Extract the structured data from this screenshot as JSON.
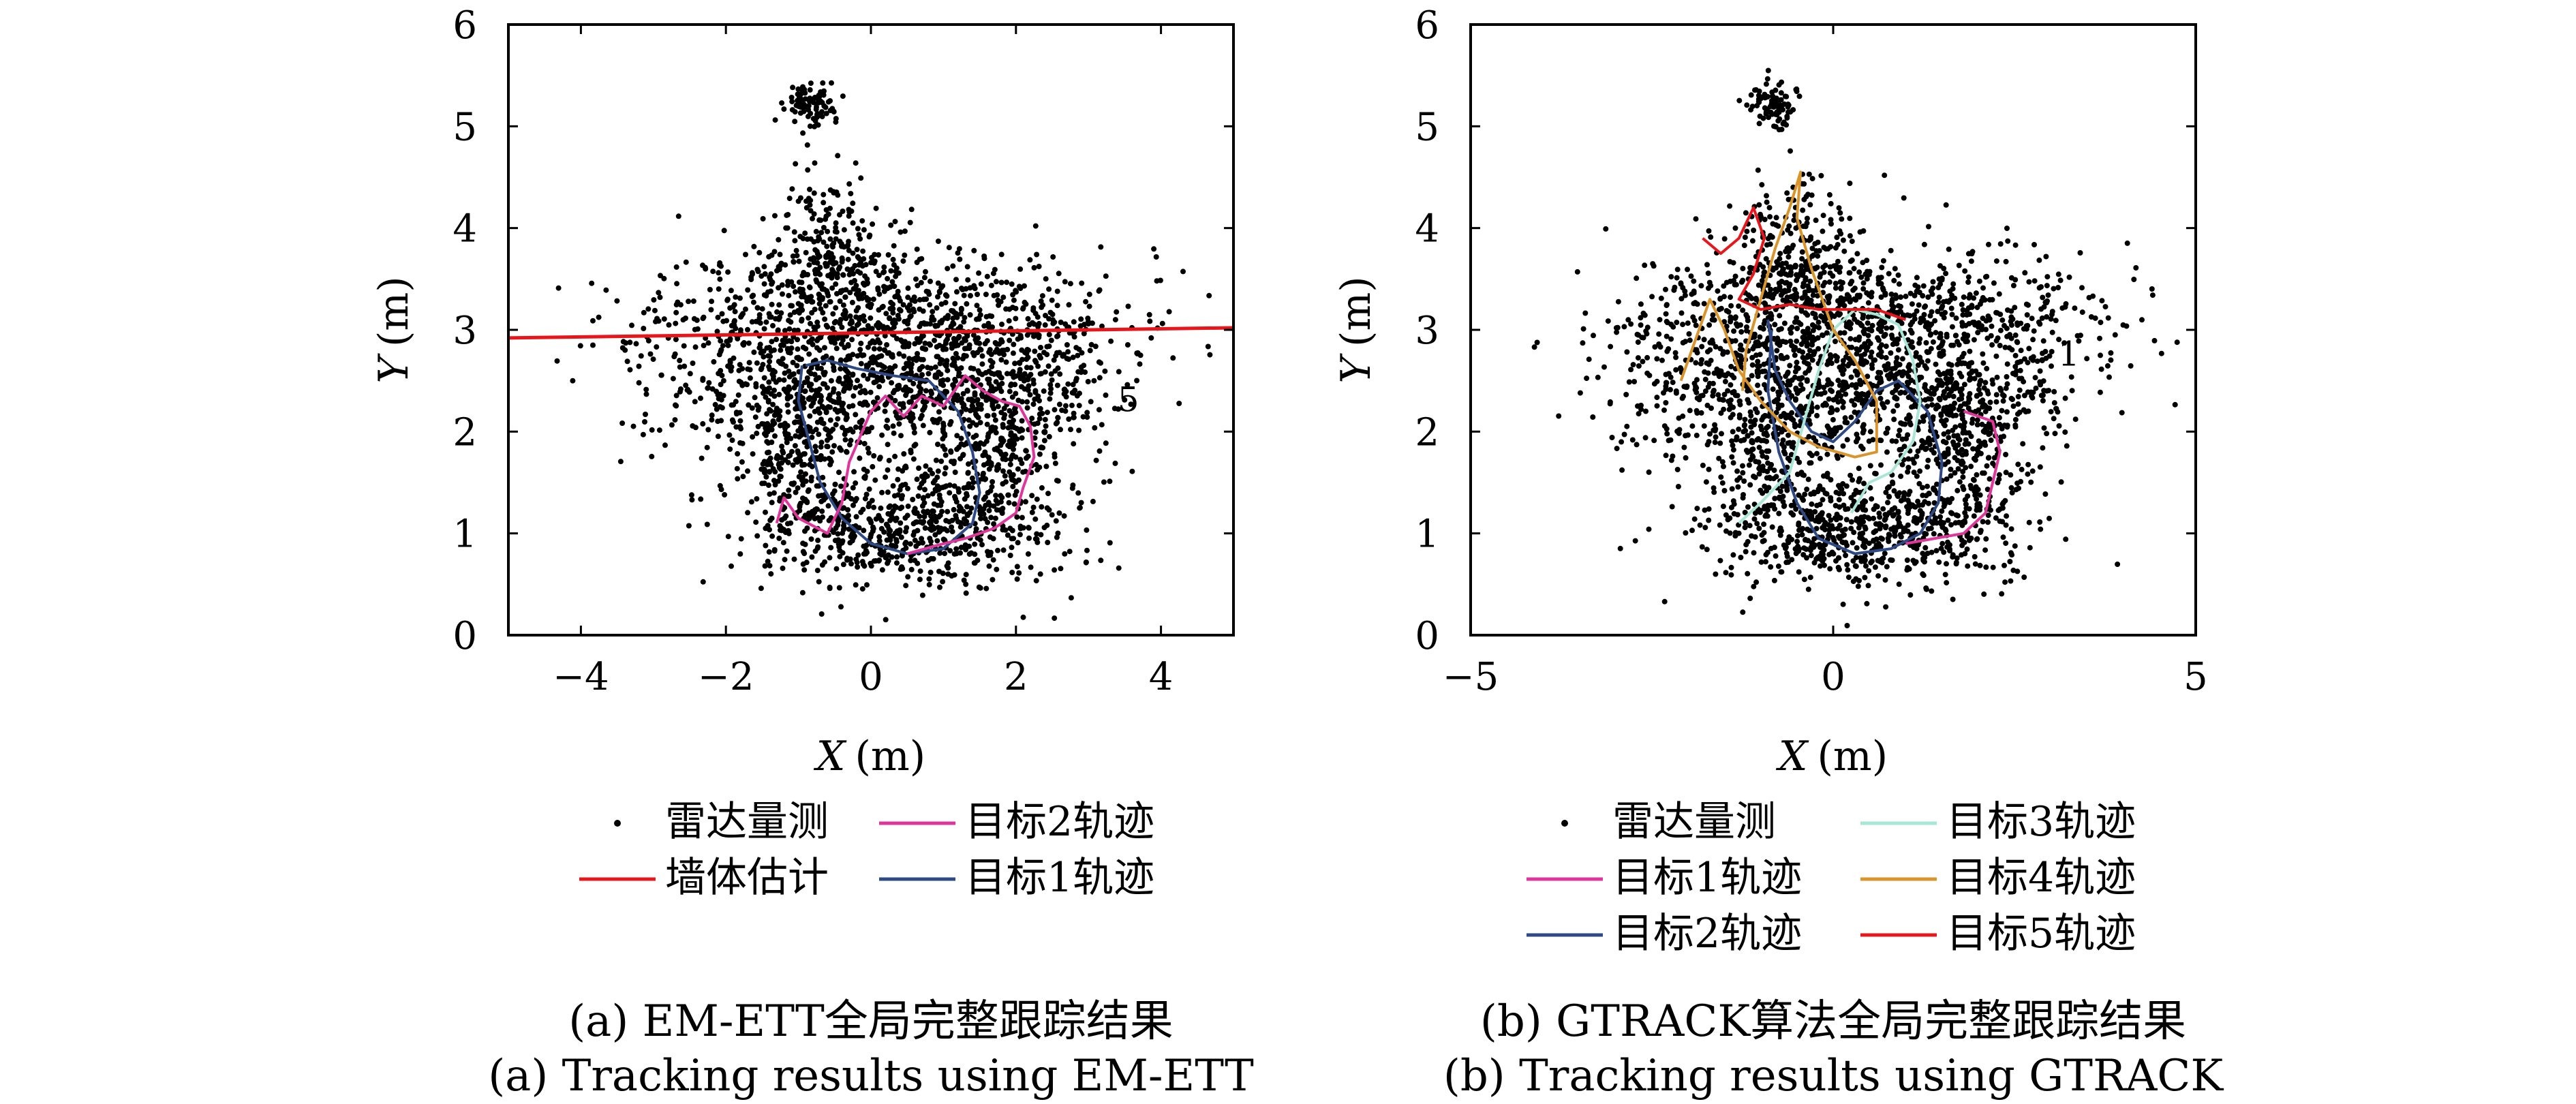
{
  "chart_data": [
    {
      "type": "scatter",
      "panel": "a",
      "xlabel_var": "X",
      "xlabel_unit": "(m)",
      "ylabel_var": "Y",
      "ylabel_unit": "(m)",
      "xlim": [
        -5,
        5
      ],
      "ylim": [
        0,
        6
      ],
      "xticks": [
        -4,
        -2,
        0,
        2,
        4
      ],
      "xtick_labels": [
        "−4",
        "−2",
        "0",
        "2",
        "4"
      ],
      "yticks": [
        0,
        1,
        2,
        3,
        4,
        5,
        6
      ],
      "ytick_labels": [
        "0",
        "1",
        "2",
        "3",
        "4",
        "5",
        "6"
      ],
      "legend": [
        {
          "label": "雷达量测",
          "kind": "marker",
          "color": "#000000"
        },
        {
          "label": "目标2轨迹",
          "kind": "line",
          "color": "#e0359b"
        },
        {
          "label": "墙体估计",
          "kind": "line",
          "color": "#e8161b"
        },
        {
          "label": "目标1轨迹",
          "kind": "line",
          "color": "#2d4a86"
        }
      ],
      "annotations": [
        {
          "text": "5",
          "x": 3.4,
          "y": 2.2
        }
      ],
      "series": [
        {
          "name": "墙体估计",
          "kind": "line",
          "color": "#e8161b",
          "width": 5,
          "points": [
            [
              -5,
              2.92
            ],
            [
              5,
              3.02
            ]
          ]
        },
        {
          "name": "目标1轨迹",
          "kind": "line",
          "color": "#2d4a86",
          "width": 4,
          "points": [
            [
              -0.9,
              2.65
            ],
            [
              -0.6,
              2.7
            ],
            [
              -0.2,
              2.62
            ],
            [
              0.3,
              2.55
            ],
            [
              0.8,
              2.5
            ],
            [
              1.2,
              2.2
            ],
            [
              1.4,
              1.8
            ],
            [
              1.5,
              1.4
            ],
            [
              1.4,
              1.1
            ],
            [
              1.0,
              0.85
            ],
            [
              0.5,
              0.8
            ],
            [
              0.0,
              0.9
            ],
            [
              -0.4,
              1.15
            ],
            [
              -0.7,
              1.5
            ],
            [
              -0.85,
              1.9
            ],
            [
              -1.0,
              2.3
            ],
            [
              -0.95,
              2.65
            ]
          ]
        },
        {
          "name": "目标2轨迹",
          "kind": "line",
          "color": "#e0359b",
          "width": 4,
          "points": [
            [
              -1.3,
              1.1
            ],
            [
              -1.2,
              1.35
            ],
            [
              -1.0,
              1.15
            ],
            [
              -0.6,
              1.0
            ],
            [
              -0.4,
              1.3
            ],
            [
              -0.3,
              1.7
            ],
            [
              0.0,
              2.2
            ],
            [
              0.2,
              2.35
            ],
            [
              0.45,
              2.15
            ],
            [
              0.7,
              2.35
            ],
            [
              1.0,
              2.25
            ],
            [
              1.3,
              2.55
            ],
            [
              1.55,
              2.4
            ],
            [
              1.8,
              2.3
            ],
            [
              2.05,
              2.25
            ],
            [
              2.2,
              2.05
            ],
            [
              2.25,
              1.75
            ],
            [
              2.1,
              1.45
            ],
            [
              2.0,
              1.2
            ],
            [
              1.7,
              1.05
            ],
            [
              1.3,
              0.95
            ],
            [
              0.9,
              0.88
            ],
            [
              0.5,
              0.8
            ]
          ]
        }
      ]
    },
    {
      "type": "scatter",
      "panel": "b",
      "xlabel_var": "X",
      "xlabel_unit": "(m)",
      "ylabel_var": "Y",
      "ylabel_unit": "(m)",
      "xlim": [
        -5,
        5
      ],
      "ylim": [
        0,
        6
      ],
      "xticks": [
        -5,
        0,
        5
      ],
      "xtick_labels": [
        "−5",
        "0",
        "5"
      ],
      "yticks": [
        0,
        1,
        2,
        3,
        4,
        5,
        6
      ],
      "ytick_labels": [
        "0",
        "1",
        "2",
        "3",
        "4",
        "5",
        "6"
      ],
      "legend": [
        {
          "label": "雷达量测",
          "kind": "marker",
          "color": "#000000"
        },
        {
          "label": "目标3轨迹",
          "kind": "line",
          "color": "#a8e6d6"
        },
        {
          "label": "目标1轨迹",
          "kind": "line",
          "color": "#e0359b"
        },
        {
          "label": "目标4轨迹",
          "kind": "line",
          "color": "#d9952b"
        },
        {
          "label": "目标2轨迹",
          "kind": "line",
          "color": "#2d4a86"
        },
        {
          "label": "目标5轨迹",
          "kind": "line",
          "color": "#e8161b"
        }
      ],
      "annotations": [
        {
          "text": "1",
          "x": 3.1,
          "y": 2.65
        }
      ],
      "series": [
        {
          "name": "目标2轨迹",
          "kind": "line",
          "color": "#2d4a86",
          "width": 4,
          "points": [
            [
              -0.9,
              3.1
            ],
            [
              -0.8,
              2.6
            ],
            [
              -0.6,
              2.3
            ],
            [
              -0.3,
              2.0
            ],
            [
              0.0,
              1.9
            ],
            [
              0.3,
              2.1
            ],
            [
              0.6,
              2.4
            ],
            [
              0.9,
              2.5
            ],
            [
              1.3,
              2.2
            ],
            [
              1.5,
              1.7
            ],
            [
              1.45,
              1.3
            ],
            [
              1.2,
              1.0
            ],
            [
              0.8,
              0.85
            ],
            [
              0.3,
              0.8
            ],
            [
              -0.2,
              0.95
            ],
            [
              -0.5,
              1.3
            ],
            [
              -0.75,
              1.8
            ],
            [
              -0.9,
              2.4
            ],
            [
              -0.85,
              3.0
            ]
          ]
        },
        {
          "name": "目标3轨迹",
          "kind": "line",
          "color": "#a8e6d6",
          "width": 4,
          "points": [
            [
              -1.3,
              1.1
            ],
            [
              -1.0,
              1.3
            ],
            [
              -0.6,
              1.6
            ],
            [
              -0.4,
              2.1
            ],
            [
              -0.2,
              2.6
            ],
            [
              0.0,
              3.0
            ],
            [
              0.3,
              3.2
            ],
            [
              0.6,
              3.15
            ],
            [
              0.9,
              3.05
            ],
            [
              1.1,
              2.7
            ],
            [
              1.2,
              2.3
            ],
            [
              1.1,
              1.9
            ],
            [
              0.8,
              1.6
            ],
            [
              0.5,
              1.5
            ],
            [
              0.25,
              1.2
            ]
          ]
        },
        {
          "name": "目标4轨迹",
          "kind": "line",
          "color": "#d9952b",
          "width": 4,
          "points": [
            [
              -2.1,
              2.5
            ],
            [
              -1.9,
              2.9
            ],
            [
              -1.7,
              3.3
            ],
            [
              -1.5,
              3.0
            ],
            [
              -1.3,
              2.6
            ],
            [
              -1.0,
              2.3
            ],
            [
              -0.6,
              2.0
            ],
            [
              -0.2,
              1.85
            ],
            [
              0.3,
              1.75
            ],
            [
              0.6,
              1.8
            ],
            [
              0.6,
              2.3
            ],
            [
              0.3,
              2.7
            ],
            [
              0.0,
              3.0
            ],
            [
              -0.3,
              3.6
            ],
            [
              -0.5,
              4.1
            ],
            [
              -0.45,
              4.55
            ],
            [
              -0.6,
              4.2
            ],
            [
              -0.8,
              3.8
            ],
            [
              -1.0,
              3.3
            ],
            [
              -1.2,
              2.8
            ],
            [
              -1.25,
              2.4
            ]
          ]
        },
        {
          "name": "目标5轨迹",
          "kind": "line",
          "color": "#e8161b",
          "width": 4,
          "points": [
            [
              -1.8,
              3.9
            ],
            [
              -1.55,
              3.75
            ],
            [
              -1.3,
              3.9
            ],
            [
              -1.1,
              4.2
            ],
            [
              -0.95,
              3.9
            ],
            [
              -1.1,
              3.55
            ],
            [
              -1.3,
              3.3
            ],
            [
              -1.0,
              3.2
            ],
            [
              -0.6,
              3.25
            ],
            [
              -0.2,
              3.2
            ],
            [
              0.2,
              3.2
            ],
            [
              0.6,
              3.2
            ],
            [
              1.0,
              3.1
            ]
          ]
        },
        {
          "name": "目标1轨迹",
          "kind": "line",
          "color": "#e0359b",
          "width": 4,
          "points": [
            [
              1.8,
              2.2
            ],
            [
              2.0,
              2.15
            ],
            [
              2.2,
              2.1
            ],
            [
              2.3,
              1.8
            ],
            [
              2.2,
              1.5
            ],
            [
              2.1,
              1.2
            ],
            [
              1.8,
              1.0
            ],
            [
              1.4,
              0.95
            ],
            [
              1.0,
              0.9
            ]
          ]
        }
      ]
    }
  ],
  "captions": {
    "a_cn": "(a) EM-ETT全局完整跟踪结果",
    "a_en": "(a) Tracking results using EM-ETT",
    "b_cn": "(b) GTRACK算法全局完整跟踪结果",
    "b_en": "(b) Tracking results using GTRACK"
  }
}
